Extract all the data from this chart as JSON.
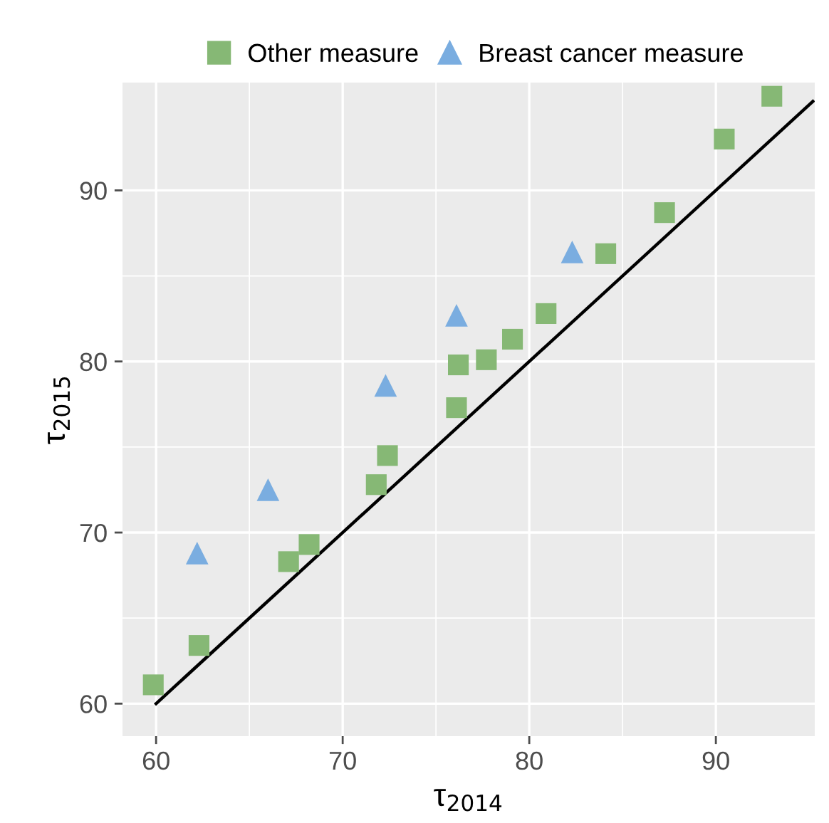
{
  "chart_data": {
    "type": "scatter",
    "xlabel": "τ$_{2014}$",
    "ylabel": "τ$_{2015}$",
    "xlim": [
      58.2,
      95.3
    ],
    "ylim": [
      58.1,
      96.3
    ],
    "xticks": [
      60,
      70,
      80,
      90
    ],
    "yticks": [
      60,
      70,
      80,
      90
    ],
    "grid": true,
    "legend": "top",
    "series": [
      {
        "name": "Other measure",
        "color": "#86b875",
        "marker": "square",
        "x": [
          59.85,
          62.3,
          67.1,
          68.2,
          71.8,
          72.4,
          76.1,
          76.2,
          77.7,
          79.1,
          80.9,
          84.1,
          87.25,
          90.45,
          93.0
        ],
        "values": [
          61.1,
          63.4,
          68.3,
          69.3,
          72.8,
          74.5,
          77.3,
          79.8,
          80.1,
          81.3,
          82.8,
          86.3,
          88.7,
          93.0,
          95.5
        ]
      },
      {
        "name": "Breast cancer measure",
        "color": "#7aade0",
        "marker": "triangle",
        "x": [
          62.2,
          66.0,
          72.3,
          76.1,
          82.3
        ],
        "values": [
          68.8,
          72.5,
          78.6,
          82.7,
          86.4
        ]
      },
      {
        "type": "line",
        "color": "#000000",
        "x": [
          60,
          95.2
        ],
        "values": [
          60,
          95.2
        ]
      }
    ]
  }
}
